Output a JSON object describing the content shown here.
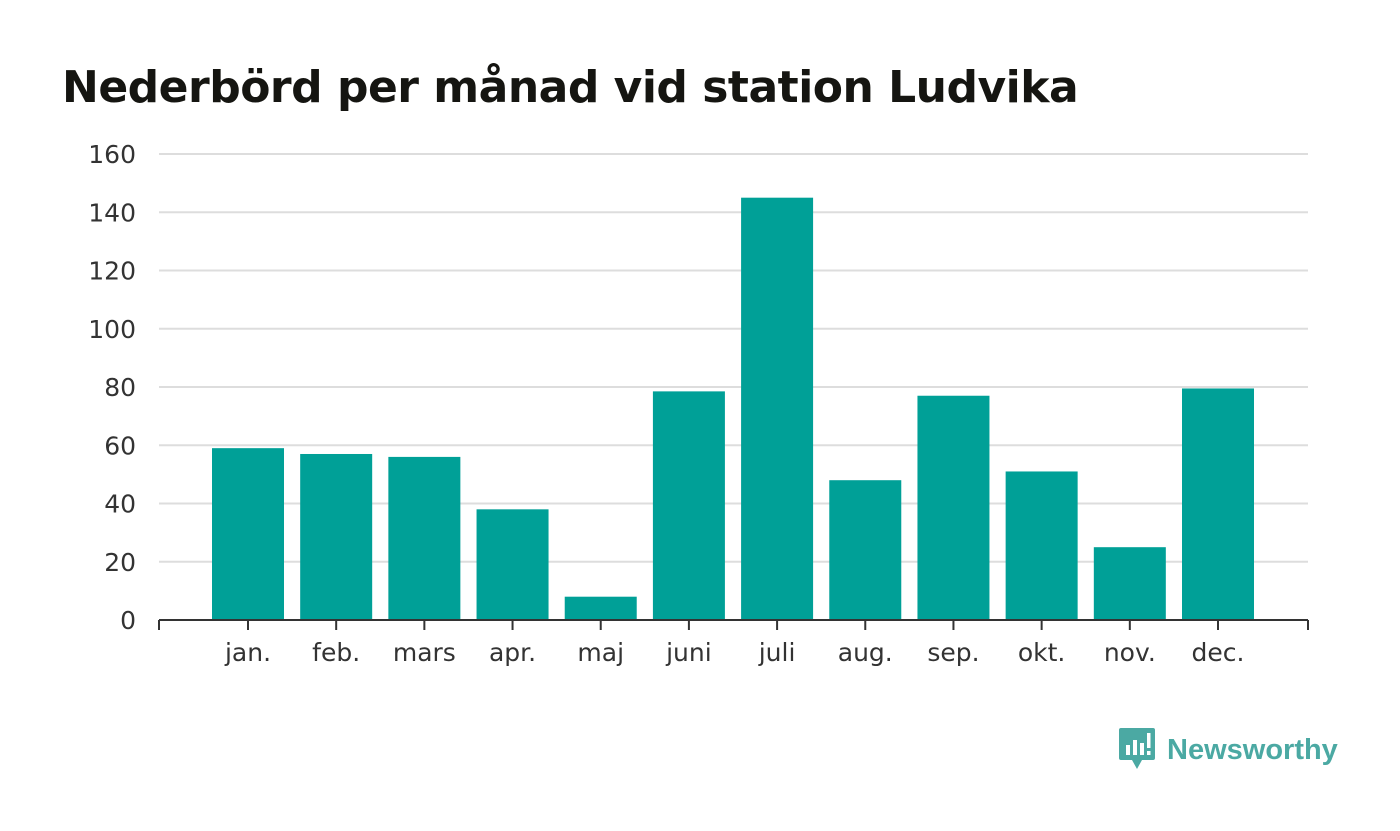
{
  "chart_data": {
    "type": "bar",
    "title": "Nederbörd per månad vid station Ludvika",
    "categories": [
      "jan.",
      "feb.",
      "mars",
      "apr.",
      "maj",
      "juni",
      "juli",
      "aug.",
      "sep.",
      "okt.",
      "nov.",
      "dec."
    ],
    "values": [
      59,
      57,
      56,
      38,
      8,
      78.5,
      145,
      48,
      77,
      51,
      25,
      79.5
    ],
    "ylim": [
      0,
      160
    ],
    "yticks": [
      0,
      20,
      40,
      60,
      80,
      100,
      120,
      140,
      160
    ],
    "xlabel": "",
    "ylabel": "",
    "grid": true,
    "bar_color": "#00a097",
    "grid_color": "#dddddd",
    "axis_color": "#333333"
  },
  "brand": {
    "name": "Newsworthy",
    "icon": "newsworthy-logo-icon",
    "color": "#4ba9a3"
  }
}
